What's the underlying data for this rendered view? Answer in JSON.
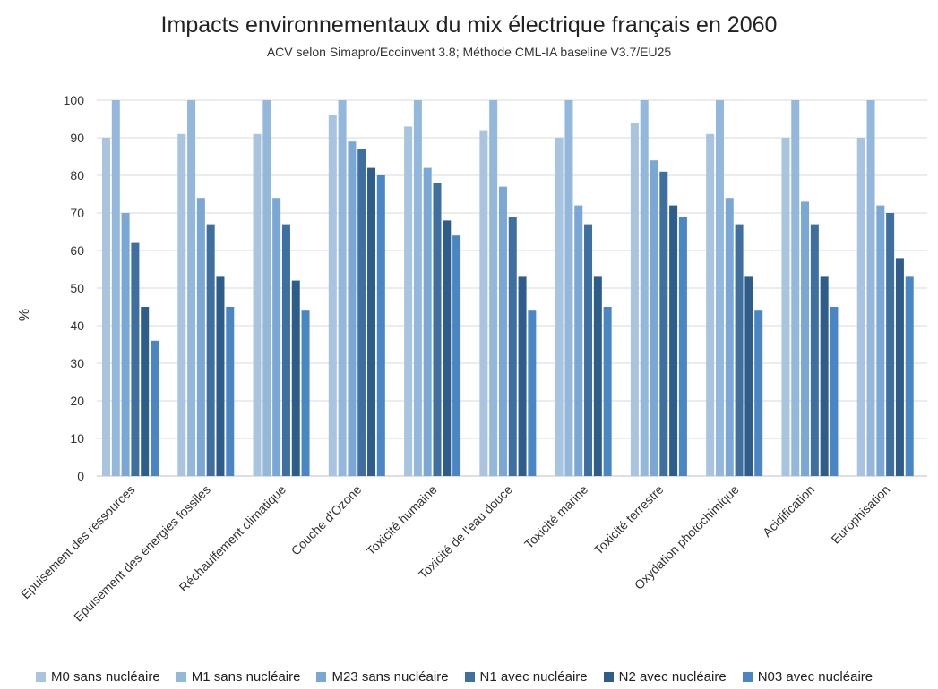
{
  "chart_data": {
    "type": "bar",
    "title": "Impacts environnementaux du mix électrique français en 2060",
    "subtitle": "ACV selon Simapro/Ecoinvent 3.8; Méthode CML-IA baseline V3.7/EU25",
    "ylabel": "%",
    "xlabel": "",
    "ylim": [
      0,
      100
    ],
    "yticks": [
      0,
      10,
      20,
      30,
      40,
      50,
      60,
      70,
      80,
      90,
      100
    ],
    "grid": true,
    "legend_position": "bottom",
    "categories": [
      "Epuisement des ressources",
      "Epuisement des énergies fossiles",
      "Réchauffement climatique",
      "Couche d'Ozone",
      "Toxicité humaine",
      "Toxicité de l'eau douce",
      "Toxicité marine",
      "Toxicité terrestre",
      "Oxydation photochimique",
      "Acidification",
      "Europhisation"
    ],
    "series": [
      {
        "name": "M0 sans nucléaire",
        "color": "#a9c4df",
        "values": [
          90,
          91,
          91,
          96,
          93,
          92,
          90,
          94,
          91,
          90,
          90
        ]
      },
      {
        "name": "M1 sans nucléaire",
        "color": "#94b8dc",
        "values": [
          100,
          100,
          100,
          100,
          100,
          100,
          100,
          100,
          100,
          100,
          100
        ]
      },
      {
        "name": "M23 sans nucléaire",
        "color": "#7ba7d4",
        "values": [
          70,
          74,
          74,
          89,
          82,
          77,
          72,
          84,
          74,
          73,
          72
        ]
      },
      {
        "name": "N1 avec nucléaire",
        "color": "#3f6f9e",
        "values": [
          62,
          67,
          67,
          87,
          78,
          69,
          67,
          81,
          67,
          67,
          70
        ]
      },
      {
        "name": "N2 avec nucléaire",
        "color": "#2f5d8a",
        "values": [
          45,
          53,
          52,
          82,
          68,
          53,
          53,
          72,
          53,
          53,
          58
        ]
      },
      {
        "name": "N03 avec nucléaire",
        "color": "#4a86c3",
        "values": [
          36,
          45,
          44,
          80,
          64,
          44,
          45,
          69,
          44,
          45,
          53
        ]
      }
    ]
  }
}
